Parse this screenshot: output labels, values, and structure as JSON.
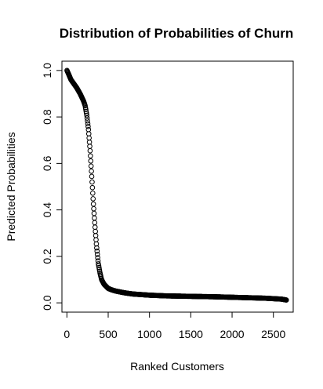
{
  "chart_data": {
    "type": "scatter",
    "title": "Distribution of Probabilities of Churn",
    "xlabel": "Ranked Customers",
    "ylabel": "Predicted Probabilities",
    "xlim": [
      -60,
      2740
    ],
    "ylim": [
      -0.04,
      1.04
    ],
    "xticks": [
      0,
      500,
      1000,
      1500,
      2000,
      2500
    ],
    "yticks": [
      0.0,
      0.2,
      0.4,
      0.6,
      0.8,
      1.0
    ],
    "xtick_labels": [
      "0",
      "500",
      "1000",
      "1500",
      "2000",
      "2500"
    ],
    "ytick_labels": [
      "0.0",
      "0.2",
      "0.4",
      "0.6",
      "0.8",
      "1.0"
    ],
    "grid": false,
    "legend": "none",
    "marker": "open-circle",
    "point_color": "#000000",
    "curve": {
      "x": [
        1,
        20,
        50,
        80,
        120,
        160,
        200,
        220,
        240,
        260,
        280,
        300,
        320,
        340,
        360,
        380,
        400,
        420,
        450,
        500,
        550,
        600,
        700,
        800,
        1000,
        1200,
        1500,
        1800,
        2000,
        2200,
        2400,
        2600,
        2660
      ],
      "y": [
        1.0,
        0.985,
        0.96,
        0.945,
        0.925,
        0.9,
        0.87,
        0.85,
        0.81,
        0.75,
        0.66,
        0.55,
        0.43,
        0.33,
        0.24,
        0.17,
        0.13,
        0.1,
        0.08,
        0.062,
        0.055,
        0.05,
        0.043,
        0.038,
        0.033,
        0.03,
        0.028,
        0.026,
        0.024,
        0.022,
        0.02,
        0.016,
        0.012
      ]
    },
    "n_points": 2660
  }
}
